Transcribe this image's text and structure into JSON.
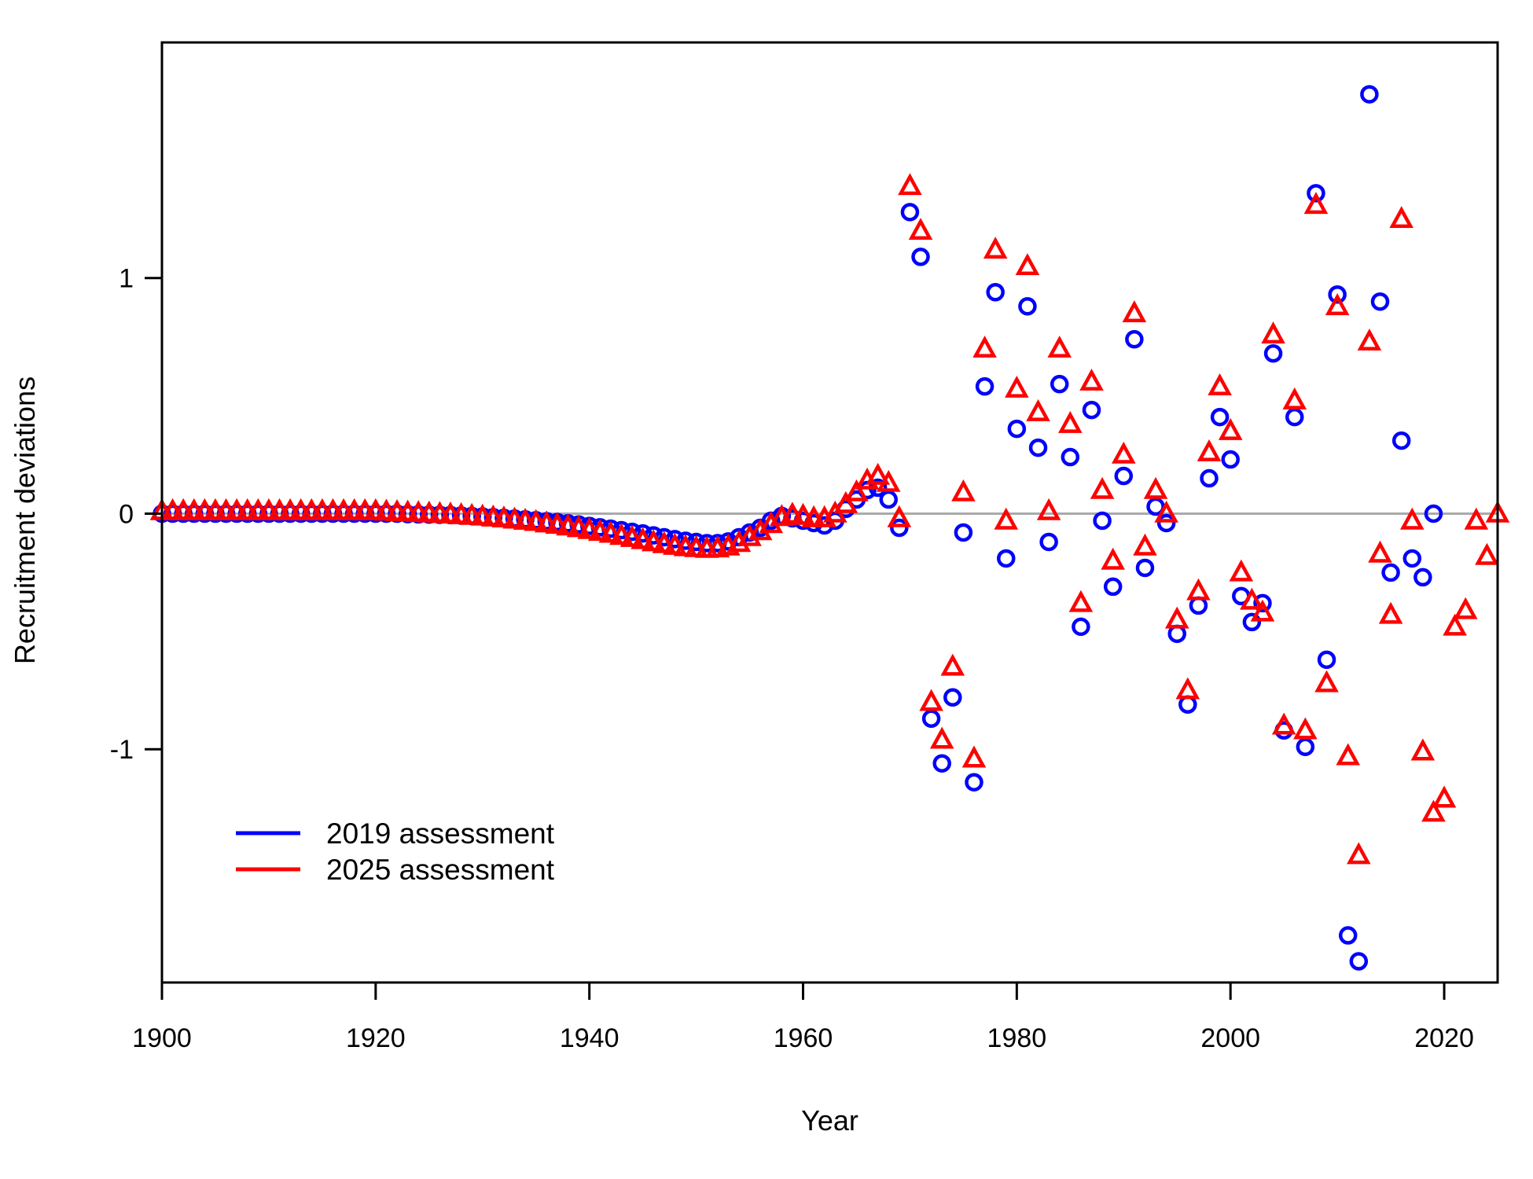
{
  "chart_data": {
    "type": "scatter",
    "title": "",
    "xlabel": "Year",
    "ylabel": "Recruitment deviations",
    "xlim": [
      1900,
      2025
    ],
    "ylim": [
      -1.99,
      2.0
    ],
    "x_ticks": [
      1900,
      1920,
      1940,
      1960,
      1980,
      2000,
      2020
    ],
    "x_tick_labels": [
      "1900",
      "1920",
      "1940",
      "1960",
      "1980",
      "2000",
      "2020"
    ],
    "y_ticks": [
      -1,
      0,
      1
    ],
    "y_tick_labels": [
      "-1",
      "0",
      "1"
    ],
    "reference_line": {
      "y": 0,
      "color": "#aaaaaa"
    },
    "legend_position": "bottom-left",
    "series": [
      {
        "name": "2019 assessment",
        "color": "#0000ff",
        "marker": "circle",
        "x": [
          1900,
          1901,
          1902,
          1903,
          1904,
          1905,
          1906,
          1907,
          1908,
          1909,
          1910,
          1911,
          1912,
          1913,
          1914,
          1915,
          1916,
          1917,
          1918,
          1919,
          1920,
          1921,
          1922,
          1923,
          1924,
          1925,
          1926,
          1927,
          1928,
          1929,
          1930,
          1931,
          1932,
          1933,
          1934,
          1935,
          1936,
          1937,
          1938,
          1939,
          1940,
          1941,
          1942,
          1943,
          1944,
          1945,
          1946,
          1947,
          1948,
          1949,
          1950,
          1951,
          1952,
          1953,
          1954,
          1955,
          1956,
          1957,
          1958,
          1959,
          1960,
          1961,
          1962,
          1963,
          1964,
          1965,
          1966,
          1967,
          1968,
          1969,
          1970,
          1971,
          1972,
          1973,
          1974,
          1975,
          1976,
          1977,
          1978,
          1979,
          1980,
          1981,
          1982,
          1983,
          1984,
          1985,
          1986,
          1987,
          1988,
          1989,
          1990,
          1991,
          1992,
          1993,
          1994,
          1995,
          1996,
          1997,
          1998,
          1999,
          2000,
          2001,
          2002,
          2003,
          2004,
          2005,
          2006,
          2007,
          2008,
          2009,
          2010,
          2011,
          2012,
          2013,
          2014,
          2015,
          2016,
          2017,
          2018,
          2019
        ],
        "y": [
          0.0,
          0.0,
          0.0,
          0.0,
          0.0,
          0.0,
          0.0,
          0.0,
          0.0,
          0.0,
          0.0,
          0.0,
          0.0,
          0.0,
          0.0,
          0.0,
          0.0,
          0.0,
          0.0,
          0.0,
          0.0,
          0.0,
          0.0,
          -0.002,
          -0.003,
          -0.004,
          -0.005,
          -0.006,
          -0.008,
          -0.01,
          -0.012,
          -0.015,
          -0.018,
          -0.021,
          -0.024,
          -0.028,
          -0.032,
          -0.036,
          -0.041,
          -0.046,
          -0.052,
          -0.058,
          -0.064,
          -0.07,
          -0.077,
          -0.084,
          -0.092,
          -0.1,
          -0.108,
          -0.115,
          -0.12,
          -0.125,
          -0.125,
          -0.118,
          -0.1,
          -0.08,
          -0.06,
          -0.03,
          -0.01,
          -0.02,
          -0.03,
          -0.04,
          -0.05,
          -0.03,
          0.02,
          0.06,
          0.1,
          0.11,
          0.06,
          -0.06,
          1.28,
          1.09,
          -0.87,
          -1.06,
          -0.78,
          -0.08,
          -1.14,
          0.54,
          0.94,
          -0.19,
          0.36,
          0.88,
          0.28,
          -0.12,
          0.55,
          0.24,
          -0.48,
          0.44,
          -0.03,
          -0.31,
          0.16,
          0.74,
          -0.23,
          0.03,
          -0.04,
          -0.51,
          -0.81,
          -0.39,
          0.15,
          0.41,
          0.23,
          -0.35,
          -0.46,
          -0.38,
          0.68,
          -0.92,
          0.41,
          -0.99,
          1.36,
          -0.62,
          0.93,
          -1.79,
          -1.9,
          1.78,
          0.9,
          -0.25,
          0.31,
          -0.19,
          -0.27,
          0.0
        ]
      },
      {
        "name": "2025 assessment",
        "color": "#ff0000",
        "marker": "triangle",
        "x": [
          1900,
          1901,
          1902,
          1903,
          1904,
          1905,
          1906,
          1907,
          1908,
          1909,
          1910,
          1911,
          1912,
          1913,
          1914,
          1915,
          1916,
          1917,
          1918,
          1919,
          1920,
          1921,
          1922,
          1923,
          1924,
          1925,
          1926,
          1927,
          1928,
          1929,
          1930,
          1931,
          1932,
          1933,
          1934,
          1935,
          1936,
          1937,
          1938,
          1939,
          1940,
          1941,
          1942,
          1943,
          1944,
          1945,
          1946,
          1947,
          1948,
          1949,
          1950,
          1951,
          1952,
          1953,
          1954,
          1955,
          1956,
          1957,
          1958,
          1959,
          1960,
          1961,
          1962,
          1963,
          1964,
          1965,
          1966,
          1967,
          1968,
          1969,
          1970,
          1971,
          1972,
          1973,
          1974,
          1975,
          1976,
          1977,
          1978,
          1979,
          1980,
          1981,
          1982,
          1983,
          1984,
          1985,
          1986,
          1987,
          1988,
          1989,
          1990,
          1991,
          1992,
          1993,
          1994,
          1995,
          1996,
          1997,
          1998,
          1999,
          2000,
          2001,
          2002,
          2003,
          2004,
          2005,
          2006,
          2007,
          2008,
          2009,
          2010,
          2011,
          2012,
          2013,
          2014,
          2015,
          2016,
          2017,
          2018,
          2019,
          2020,
          2021,
          2022,
          2023,
          2024,
          2025
        ],
        "y": [
          0.01,
          0.01,
          0.01,
          0.01,
          0.01,
          0.01,
          0.01,
          0.01,
          0.01,
          0.01,
          0.01,
          0.01,
          0.01,
          0.01,
          0.01,
          0.01,
          0.01,
          0.01,
          0.01,
          0.01,
          0.01,
          0.008,
          0.006,
          0.004,
          0.002,
          0.0,
          -0.002,
          -0.004,
          -0.007,
          -0.01,
          -0.013,
          -0.017,
          -0.021,
          -0.026,
          -0.031,
          -0.036,
          -0.042,
          -0.048,
          -0.055,
          -0.062,
          -0.07,
          -0.078,
          -0.086,
          -0.095,
          -0.104,
          -0.113,
          -0.122,
          -0.13,
          -0.137,
          -0.143,
          -0.147,
          -0.15,
          -0.148,
          -0.14,
          -0.125,
          -0.1,
          -0.075,
          -0.045,
          -0.015,
          -0.005,
          -0.01,
          -0.02,
          -0.02,
          0.0,
          0.04,
          0.09,
          0.14,
          0.16,
          0.13,
          -0.02,
          1.39,
          1.2,
          -0.8,
          -0.96,
          -0.65,
          0.09,
          -1.04,
          0.7,
          1.12,
          -0.03,
          0.53,
          1.05,
          0.43,
          0.01,
          0.7,
          0.38,
          -0.38,
          0.56,
          0.1,
          -0.2,
          0.25,
          0.85,
          -0.14,
          0.1,
          0.0,
          -0.45,
          -0.75,
          -0.33,
          0.26,
          0.54,
          0.35,
          -0.25,
          -0.37,
          -0.42,
          0.76,
          -0.9,
          0.48,
          -0.92,
          1.31,
          -0.72,
          0.88,
          -1.03,
          -1.45,
          0.73,
          -0.17,
          -0.43,
          1.25,
          -0.03,
          -1.01,
          -1.27,
          -1.21,
          -0.48,
          -0.41,
          -0.03,
          -0.18,
          0.0
        ]
      }
    ]
  }
}
